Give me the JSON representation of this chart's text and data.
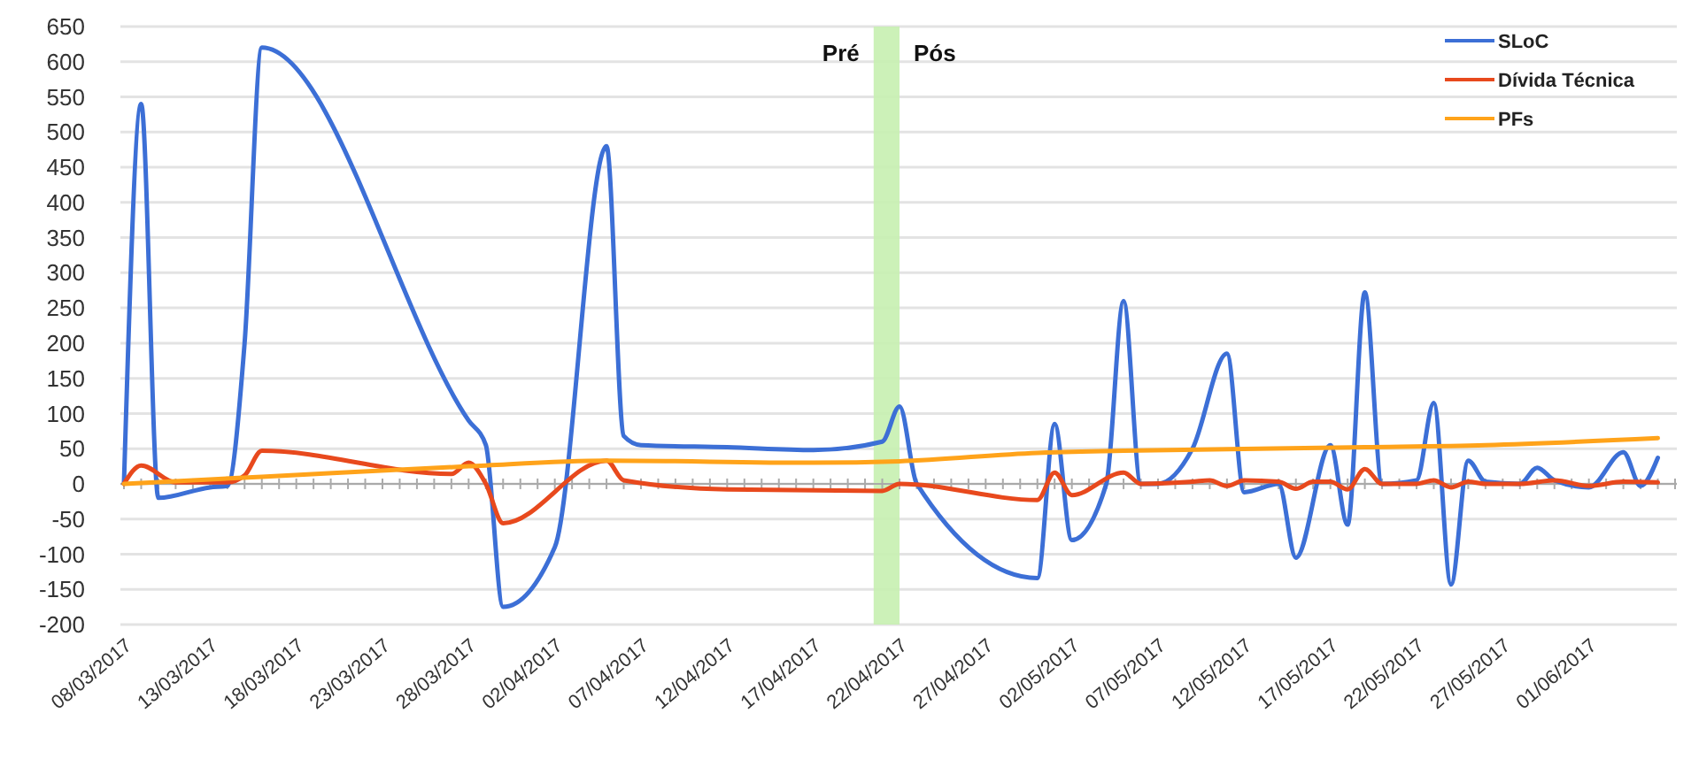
{
  "chart_data": {
    "type": "line",
    "xlim": [
      "2017-03-08",
      "2017-06-06"
    ],
    "xticks": [
      {
        "value": "2017-03-08",
        "label": "08/03/2017"
      },
      {
        "value": "2017-03-13",
        "label": "13/03/2017"
      },
      {
        "value": "2017-03-18",
        "label": "18/03/2017"
      },
      {
        "value": "2017-03-23",
        "label": "23/03/2017"
      },
      {
        "value": "2017-03-28",
        "label": "28/03/2017"
      },
      {
        "value": "2017-04-02",
        "label": "02/04/2017"
      },
      {
        "value": "2017-04-07",
        "label": "07/04/2017"
      },
      {
        "value": "2017-04-12",
        "label": "12/04/2017"
      },
      {
        "value": "2017-04-17",
        "label": "17/04/2017"
      },
      {
        "value": "2017-04-22",
        "label": "22/04/2017"
      },
      {
        "value": "2017-04-27",
        "label": "27/04/2017"
      },
      {
        "value": "2017-05-02",
        "label": "02/05/2017"
      },
      {
        "value": "2017-05-07",
        "label": "07/05/2017"
      },
      {
        "value": "2017-05-12",
        "label": "12/05/2017"
      },
      {
        "value": "2017-05-17",
        "label": "17/05/2017"
      },
      {
        "value": "2017-05-22",
        "label": "22/05/2017"
      },
      {
        "value": "2017-05-27",
        "label": "27/05/2017"
      },
      {
        "value": "2017-06-01",
        "label": "01/06/2017"
      }
    ],
    "ylim": [
      -200,
      650
    ],
    "yticks": [
      -200,
      -150,
      -100,
      -50,
      0,
      50,
      100,
      150,
      200,
      250,
      300,
      350,
      400,
      450,
      500,
      550,
      600,
      650
    ],
    "grid": "y",
    "legend": "top right",
    "series": [
      {
        "name": "SLoC",
        "color": "#3c6fd6",
        "x": [
          "2017-03-08",
          "2017-03-09",
          "2017-03-10",
          "2017-03-13",
          "2017-03-14",
          "2017-03-15",
          "2017-03-16",
          "2017-03-28",
          "2017-03-29",
          "2017-03-30",
          "2017-04-02",
          "2017-04-05",
          "2017-04-06",
          "2017-04-07",
          "2017-04-12",
          "2017-04-17",
          "2017-04-21",
          "2017-04-22",
          "2017-04-23",
          "2017-04-30",
          "2017-05-01",
          "2017-05-02",
          "2017-05-04",
          "2017-05-05",
          "2017-05-06",
          "2017-05-07",
          "2017-05-09",
          "2017-05-11",
          "2017-05-12",
          "2017-05-14",
          "2017-05-15",
          "2017-05-17",
          "2017-05-18",
          "2017-05-19",
          "2017-05-20",
          "2017-05-22",
          "2017-05-23",
          "2017-05-24",
          "2017-05-25",
          "2017-05-26",
          "2017-05-28",
          "2017-05-29",
          "2017-05-30",
          "2017-06-01",
          "2017-06-03",
          "2017-06-04",
          "2017-06-05"
        ],
        "values": [
          0,
          540,
          -20,
          -5,
          -3,
          200,
          620,
          90,
          55,
          -175,
          -90,
          480,
          68,
          55,
          52,
          48,
          60,
          110,
          0,
          -134,
          85,
          -80,
          0,
          260,
          0,
          0,
          50,
          185,
          -12,
          0,
          -105,
          55,
          -58,
          272,
          0,
          5,
          115,
          -143,
          33,
          3,
          0,
          23,
          5,
          -5,
          45,
          -3,
          37
        ]
      },
      {
        "name": "Dívida Técnica",
        "color": "#e8491d",
        "x": [
          "2017-03-08",
          "2017-03-09",
          "2017-03-11",
          "2017-03-14",
          "2017-03-15",
          "2017-03-16",
          "2017-03-27",
          "2017-03-28",
          "2017-03-29",
          "2017-03-30",
          "2017-04-05",
          "2017-04-06",
          "2017-04-12",
          "2017-04-21",
          "2017-04-22",
          "2017-04-30",
          "2017-05-01",
          "2017-05-02",
          "2017-05-05",
          "2017-05-06",
          "2017-05-09",
          "2017-05-10",
          "2017-05-11",
          "2017-05-12",
          "2017-05-14",
          "2017-05-15",
          "2017-05-16",
          "2017-05-17",
          "2017-05-18",
          "2017-05-19",
          "2017-05-20",
          "2017-05-22",
          "2017-05-23",
          "2017-05-24",
          "2017-05-25",
          "2017-05-26",
          "2017-05-28",
          "2017-05-30",
          "2017-06-01",
          "2017-06-03",
          "2017-06-05"
        ],
        "values": [
          0,
          26,
          2,
          2,
          12,
          47,
          14,
          30,
          0,
          -56,
          33,
          5,
          -8,
          -10,
          0,
          -23,
          16,
          -16,
          16,
          0,
          3,
          5,
          -3,
          5,
          3,
          -7,
          3,
          3,
          -8,
          21,
          0,
          0,
          5,
          -5,
          3,
          0,
          0,
          5,
          -3,
          3,
          2
        ]
      },
      {
        "name": "PFs",
        "color": "#ffa31a",
        "x": [
          "2017-03-08",
          "2017-03-16",
          "2017-03-28",
          "2017-04-05",
          "2017-04-17",
          "2017-04-22",
          "2017-04-30",
          "2017-05-05",
          "2017-05-19",
          "2017-05-26",
          "2017-06-05"
        ],
        "values": [
          0,
          10,
          25,
          33,
          30,
          32,
          44,
          47,
          52,
          55,
          65
        ]
      }
    ],
    "bands": [
      {
        "axis": "x",
        "from": "2017-04-20T12:00",
        "to": "2017-04-22",
        "color": "#c6efb0"
      }
    ],
    "annotations": [
      "Pré",
      "Pós"
    ]
  }
}
